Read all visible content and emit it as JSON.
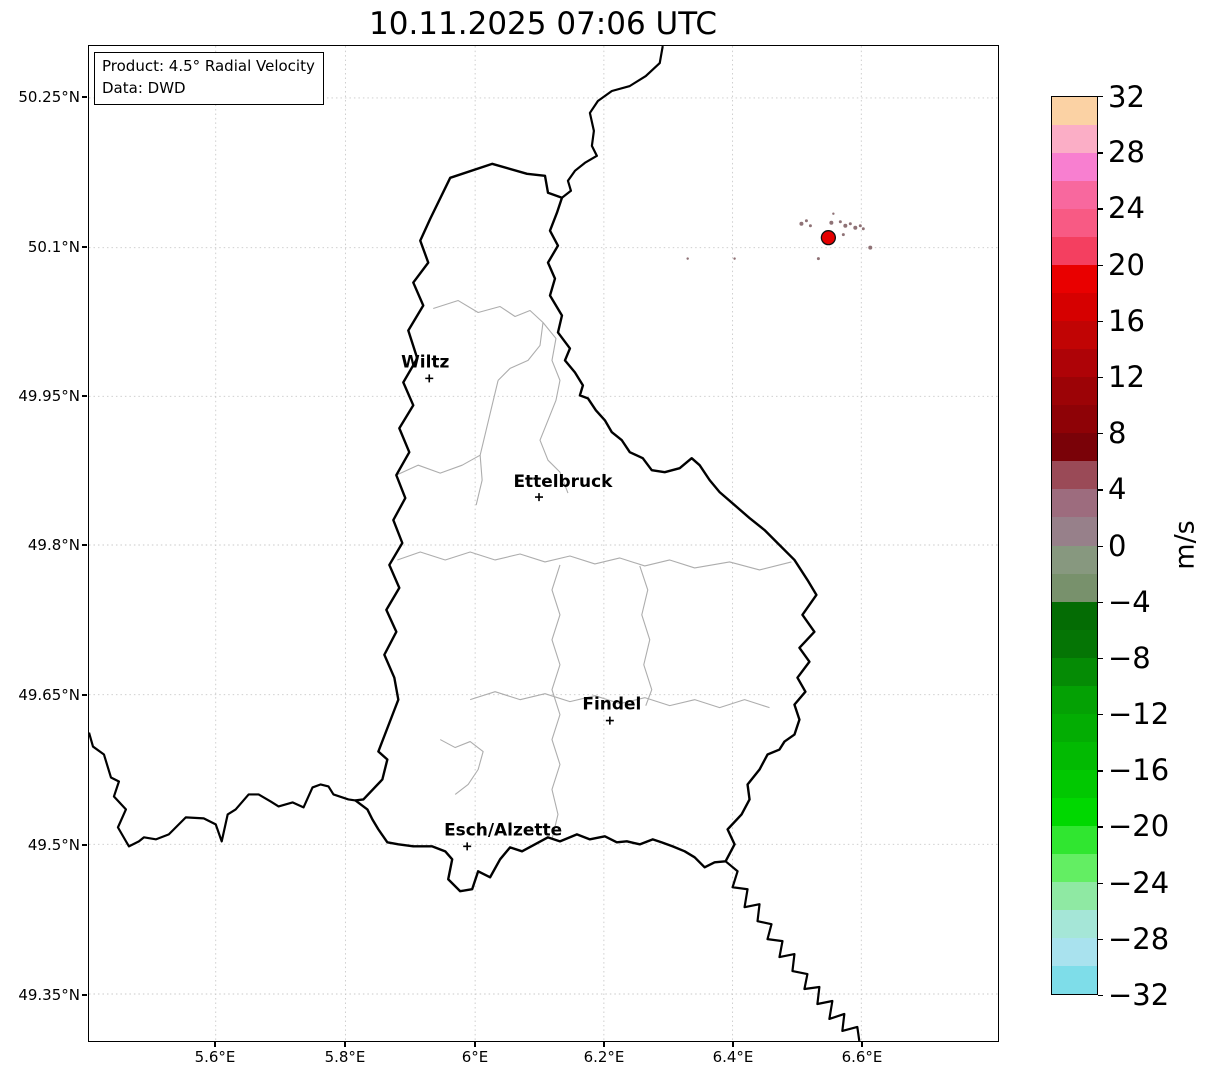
{
  "title": "10.11.2025 07:06 UTC",
  "info_box": {
    "line1": "Product: 4.5° Radial Velocity",
    "line2": "Data: DWD"
  },
  "axes": {
    "y_ticks": [
      "50.25°N",
      "50.1°N",
      "49.95°N",
      "49.8°N",
      "49.65°N",
      "49.5°N",
      "49.35°N"
    ],
    "x_ticks": [
      "5.6°E",
      "5.8°E",
      "6°E",
      "6.2°E",
      "6.4°E",
      "6.6°E"
    ]
  },
  "map": {
    "cities": [
      {
        "name": "Wiltz"
      },
      {
        "name": "Ettelbruck"
      },
      {
        "name": "Findel"
      },
      {
        "name": "Esch/Alzette"
      }
    ],
    "border_color": "#000000",
    "canton_border_color": "#adadad",
    "grid_color": "#c9c9c9",
    "radar_marker_color": "#e50000",
    "echo_speckle_color": "#8f7276"
  },
  "colorbar": {
    "unit": "m/s",
    "range_min": -32,
    "range_max": 32,
    "step_per_segment": 2,
    "tick_labels": [
      "32",
      "28",
      "24",
      "20",
      "16",
      "12",
      "8",
      "4",
      "0",
      "−4",
      "−8",
      "−12",
      "−16",
      "−20",
      "−24",
      "−28",
      "−32"
    ],
    "segments_top_to_bottom": [
      "#fbd2a4",
      "#fbaec6",
      "#f87fd0",
      "#f8689e",
      "#f85a84",
      "#f43f60",
      "#e90000",
      "#d60000",
      "#c10404",
      "#ae0307",
      "#9c0306",
      "#8e0206",
      "#7a0208",
      "#9a4a57",
      "#9d6c7e",
      "#97808a",
      "#87987f",
      "#78916c",
      "#046c04",
      "#057505",
      "#058b05",
      "#04a104",
      "#03ad03",
      "#02ba02",
      "#01c801",
      "#00d800",
      "#30e630",
      "#63ee63",
      "#8fe9a3",
      "#a5e6d7",
      "#a9e2ee",
      "#7edde9"
    ]
  }
}
